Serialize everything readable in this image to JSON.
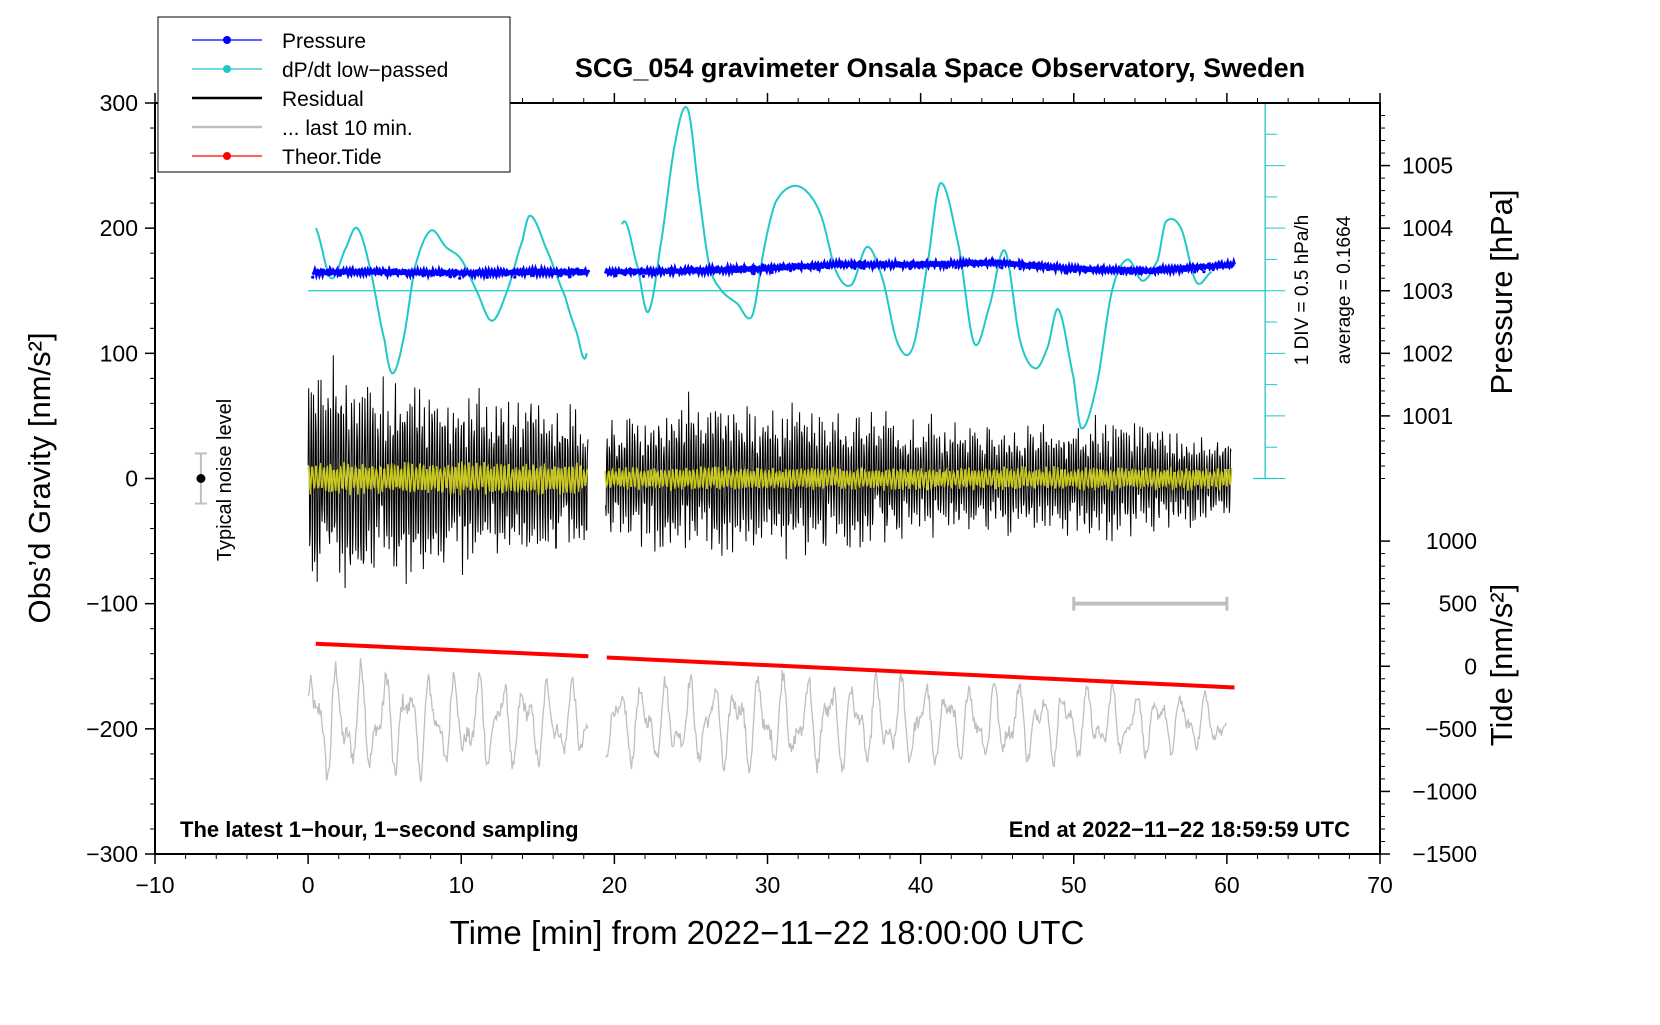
{
  "chart_data": {
    "type": "line",
    "title": "SCG_054 gravimeter Onsala Space Observatory, Sweden",
    "xlabel": "Time [min] from 2022−11−22 18:00:00 UTC",
    "ylabel_left": "Obs’d Gravity [nm/s²]",
    "ylabel_right_top": "Pressure [hPa]",
    "ylabel_right_bottom": "Tide [nm/s²]",
    "xlim": [
      -10,
      70
    ],
    "ylim": [
      -300,
      300
    ],
    "x_ticks": [
      -10,
      0,
      10,
      20,
      30,
      40,
      50,
      60,
      70
    ],
    "x_tick_labels": [
      "−10",
      "0",
      "10",
      "20",
      "30",
      "40",
      "50",
      "60",
      "70"
    ],
    "y_ticks": [
      -300,
      -200,
      -100,
      0,
      100,
      200,
      300
    ],
    "y_tick_labels": [
      "−300",
      "−200",
      "−100",
      "0",
      "100",
      "200",
      "300"
    ],
    "pressure_ticks": [
      1001,
      1002,
      1003,
      1004,
      1005
    ],
    "pressure_tick_labels": [
      "1001",
      "1002",
      "1003",
      "1004",
      "1005"
    ],
    "tide_ticks": [
      -1500,
      -1000,
      -500,
      0,
      500,
      1000
    ],
    "tide_tick_labels": [
      "−1500",
      "−1000",
      "−500",
      "0",
      "500",
      "1000"
    ],
    "pressure_axis": {
      "hpa_at_gravity_150": 1003.0,
      "gravity_per_hpa": 50
    },
    "tide_axis": {
      "tide_at_gravity_minus150": 0,
      "tide_per_gravity_unit": 10
    },
    "legend": [
      {
        "label": "Pressure",
        "color": "#0000ff",
        "marker": true
      },
      {
        "label": "dP/dt low−passed",
        "color": "#20c8c8",
        "marker": true
      },
      {
        "label": "Residual",
        "color": "#000000",
        "marker": false
      },
      {
        "label": "... last 10 min.",
        "color": "#bfbfbf",
        "marker": false
      },
      {
        "label": "Theor.Tide",
        "color": "#ff0000",
        "marker": true
      }
    ],
    "annotations": {
      "left_bottom": "The latest 1−hour, 1−second sampling",
      "right_bottom": "End at 2022−11−22 18:59:59 UTC",
      "noise_label": "Typical noise level",
      "dpdt_scale": "1 DIV = 0.5 hPa/h",
      "dpdt_average": "average = 0.1664"
    },
    "gaps_min": [
      [
        18.3,
        19.4
      ]
    ],
    "series": [
      {
        "name": "Pressure",
        "units": "hPa",
        "color": "#0000ff",
        "x": [
          0,
          5,
          10,
          15,
          18,
          19.5,
          25,
          30,
          35,
          40,
          45,
          50,
          55,
          60.5
        ],
        "values": [
          1003.3,
          1003.3,
          1003.28,
          1003.3,
          1003.3,
          1003.3,
          1003.32,
          1003.36,
          1003.42,
          1003.42,
          1003.45,
          1003.35,
          1003.32,
          1003.42
        ]
      },
      {
        "name": "dP/dt low-passed",
        "units": "gravity-axis",
        "color": "#20c8c8",
        "x": [
          0.5,
          1.5,
          2.5,
          3.2,
          4.0,
          5.0,
          5.5,
          6.2,
          7.0,
          8.0,
          9.0,
          10.0,
          11.0,
          12.0,
          13.0,
          14.0,
          14.5,
          15.5,
          16.8,
          17.5,
          18.2,
          20.5,
          21.5,
          22.2,
          23.0,
          24.0,
          24.8,
          25.5,
          26.2,
          27.0,
          28.0,
          29.0,
          29.8,
          30.5,
          31.5,
          32.5,
          33.5,
          34.5,
          35.5,
          36.5,
          37.5,
          38.5,
          39.5,
          40.5,
          41.3,
          42.5,
          43.5,
          44.5,
          45.5,
          46.5,
          47.5,
          48.3,
          49.0,
          50.0,
          50.5,
          51.5,
          52.5,
          53.5,
          54.5,
          55.5,
          56.0,
          57.0,
          58.0,
          59.0
        ],
        "values": [
          200,
          160,
          185,
          200,
          170,
          110,
          84,
          110,
          170,
          198,
          185,
          175,
          150,
          126,
          150,
          190,
          210,
          185,
          145,
          118,
          100,
          203,
          170,
          133,
          185,
          270,
          295,
          230,
          170,
          150,
          140,
          130,
          185,
          220,
          233,
          230,
          210,
          165,
          155,
          185,
          160,
          108,
          105,
          175,
          236,
          185,
          108,
          138,
          182,
          110,
          88,
          105,
          135,
          80,
          40,
          75,
          150,
          175,
          158,
          175,
          205,
          200,
          157,
          165
        ]
      },
      {
        "name": "Residual",
        "units": "nm/s²",
        "color": "#000000",
        "approx_envelope_x": [
          0,
          5,
          10,
          15,
          20,
          25,
          30,
          35,
          40,
          45,
          50,
          55,
          60
        ],
        "approx_envelope_amp": [
          120,
          110,
          95,
          90,
          65,
          85,
          75,
          75,
          65,
          55,
          65,
          60,
          45
        ]
      },
      {
        "name": "... last 10 min.",
        "units": "nm/s²",
        "color": "#bfbfbf",
        "approx_envelope_x": [
          0,
          5,
          10,
          20,
          30,
          40,
          50,
          60
        ],
        "approx_envelope_amp": [
          55,
          50,
          45,
          35,
          45,
          40,
          35,
          25
        ]
      },
      {
        "name": "Theor.Tide",
        "units": "nm/s²",
        "color": "#ff0000",
        "x": [
          0.5,
          18.3,
          19.5,
          60.5
        ],
        "values": [
          -132,
          -142,
          -143,
          -167
        ]
      }
    ],
    "noise_level": {
      "x": -7,
      "center": 0,
      "range": [
        -20,
        20
      ]
    },
    "scale_bar": {
      "x": [
        50,
        60
      ],
      "y": -100
    }
  }
}
